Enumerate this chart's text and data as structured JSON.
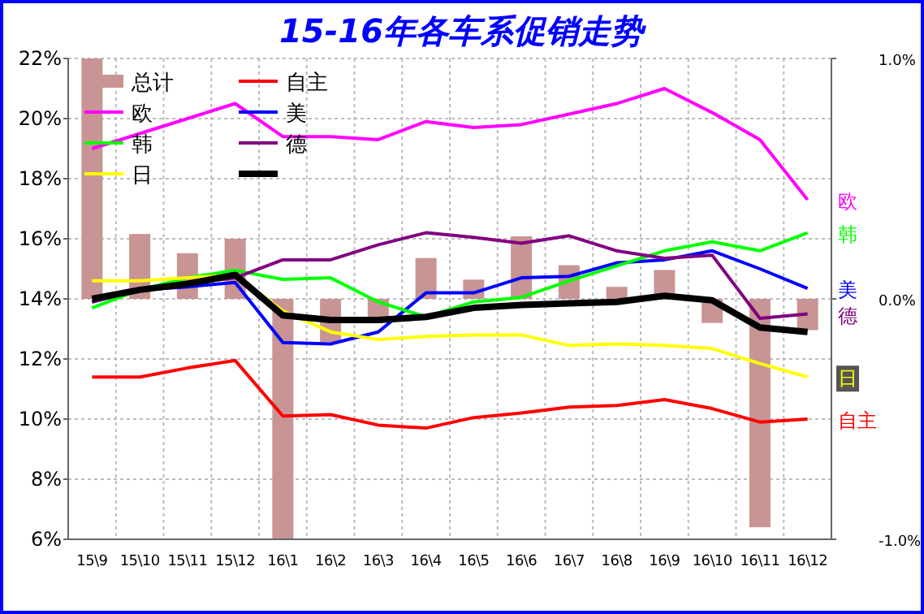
{
  "chart_data": {
    "type": "line",
    "title": "15-16年各车系促销走势",
    "categories": [
      "15\\9",
      "15\\10",
      "15\\11",
      "15\\12",
      "16\\1",
      "16\\2",
      "16\\3",
      "16\\4",
      "16\\5",
      "16\\6",
      "16\\7",
      "16\\8",
      "16\\9",
      "16\\10",
      "16\\11",
      "16\\12"
    ],
    "series": [
      {
        "name": "总计",
        "type": "bar",
        "axis": "y2",
        "color": "#c89494",
        "values": [
          1.0,
          0.27,
          0.19,
          0.25,
          -1.0,
          -0.18,
          -0.09,
          0.17,
          0.08,
          0.26,
          0.14,
          0.05,
          0.12,
          -0.1,
          -0.95,
          -0.13
        ]
      },
      {
        "name": "自主",
        "color": "#ff0000",
        "values": [
          11.4,
          11.4,
          11.7,
          11.95,
          10.1,
          10.15,
          9.8,
          9.7,
          10.05,
          10.2,
          10.4,
          10.45,
          10.65,
          10.35,
          9.9,
          10.0
        ]
      },
      {
        "name": "欧",
        "color": "#ff00ff",
        "values": [
          19.0,
          19.5,
          20.0,
          20.5,
          19.4,
          19.4,
          19.3,
          19.9,
          19.7,
          19.8,
          20.15,
          20.5,
          21.0,
          20.2,
          19.3,
          17.3
        ]
      },
      {
        "name": "美",
        "color": "#0000ff",
        "values": [
          13.9,
          14.3,
          14.4,
          14.55,
          12.55,
          12.5,
          12.9,
          14.2,
          14.2,
          14.7,
          14.75,
          15.2,
          15.3,
          15.6,
          15.0,
          14.35
        ]
      },
      {
        "name": "韩",
        "color": "#00ff00",
        "values": [
          13.7,
          14.3,
          14.7,
          14.95,
          14.65,
          14.7,
          13.9,
          13.4,
          13.9,
          14.05,
          14.6,
          15.1,
          15.6,
          15.9,
          15.6,
          16.2
        ]
      },
      {
        "name": "德",
        "color": "#800080",
        "values": [
          13.9,
          14.3,
          14.5,
          14.7,
          15.3,
          15.3,
          15.8,
          16.2,
          16.05,
          15.85,
          16.1,
          15.6,
          15.35,
          15.45,
          13.35,
          13.5
        ]
      },
      {
        "name": "日",
        "color": "#ffff00",
        "values": [
          14.6,
          14.6,
          14.7,
          14.8,
          13.6,
          12.9,
          12.65,
          12.75,
          12.8,
          12.8,
          12.45,
          12.5,
          12.45,
          12.35,
          11.85,
          11.4
        ]
      },
      {
        "color": "#000000",
        "values": [
          14.0,
          14.3,
          14.5,
          14.8,
          13.45,
          13.3,
          13.3,
          13.4,
          13.7,
          13.8,
          13.85,
          13.9,
          14.1,
          13.95,
          13.05,
          12.9
        ]
      }
    ],
    "ylim": [
      6,
      22
    ],
    "yticks": [
      {
        "value": 6,
        "label": "6%"
      },
      {
        "value": 8,
        "label": "8%"
      },
      {
        "value": 10,
        "label": "10%"
      },
      {
        "value": 12,
        "label": "12%"
      },
      {
        "value": 14,
        "label": "14%"
      },
      {
        "value": 16,
        "label": "16%"
      },
      {
        "value": 18,
        "label": "18%"
      },
      {
        "value": 20,
        "label": "20%"
      },
      {
        "value": 22,
        "label": "22%"
      }
    ],
    "y2lim": [
      -1,
      1
    ],
    "y2ticks": [
      {
        "value": -1,
        "label": "-1.0%"
      },
      {
        "value": 0,
        "label": "0.0%"
      },
      {
        "value": 1,
        "label": "1.0%"
      }
    ],
    "grid": true,
    "legend": "top left",
    "marker": "none",
    "line_style": "solid"
  }
}
